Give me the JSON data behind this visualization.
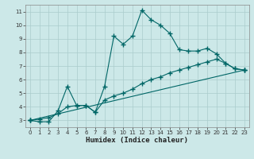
{
  "bg_color": "#cce8e8",
  "grid_color": "#aacccc",
  "line_color": "#006666",
  "line_width": 0.8,
  "marker": "+",
  "marker_size": 4,
  "marker_ew": 1.0,
  "xlabel": "Humidex (Indice chaleur)",
  "xlabel_fontsize": 6.5,
  "xlim": [
    -0.5,
    23.5
  ],
  "ylim": [
    2.5,
    11.5
  ],
  "yticks": [
    3,
    4,
    5,
    6,
    7,
    8,
    9,
    10,
    11
  ],
  "xticks": [
    0,
    1,
    2,
    3,
    4,
    5,
    6,
    7,
    8,
    9,
    10,
    11,
    12,
    13,
    14,
    15,
    16,
    17,
    18,
    19,
    20,
    21,
    22,
    23
  ],
  "series1_x": [
    0,
    1,
    2,
    3,
    4,
    5,
    6,
    7,
    8,
    9,
    10,
    11,
    12,
    13,
    14,
    15,
    16,
    17,
    18,
    19,
    20,
    21,
    22,
    23
  ],
  "series1_y": [
    3.0,
    2.9,
    2.9,
    3.7,
    5.5,
    4.1,
    4.1,
    3.6,
    5.5,
    9.2,
    8.6,
    9.2,
    11.1,
    10.4,
    10.0,
    9.4,
    8.2,
    8.1,
    8.1,
    8.3,
    7.9,
    7.2,
    6.8,
    6.7
  ],
  "series2_x": [
    0,
    1,
    2,
    3,
    4,
    5,
    6,
    7,
    8,
    9,
    10,
    11,
    12,
    13,
    14,
    15,
    16,
    17,
    18,
    19,
    20,
    21,
    22,
    23
  ],
  "series2_y": [
    3.0,
    3.1,
    3.2,
    3.5,
    4.0,
    4.1,
    4.1,
    3.6,
    4.5,
    4.8,
    5.0,
    5.3,
    5.7,
    6.0,
    6.2,
    6.5,
    6.7,
    6.9,
    7.1,
    7.3,
    7.5,
    7.2,
    6.8,
    6.7
  ],
  "series3_x": [
    0,
    23
  ],
  "series3_y": [
    3.0,
    6.7
  ]
}
